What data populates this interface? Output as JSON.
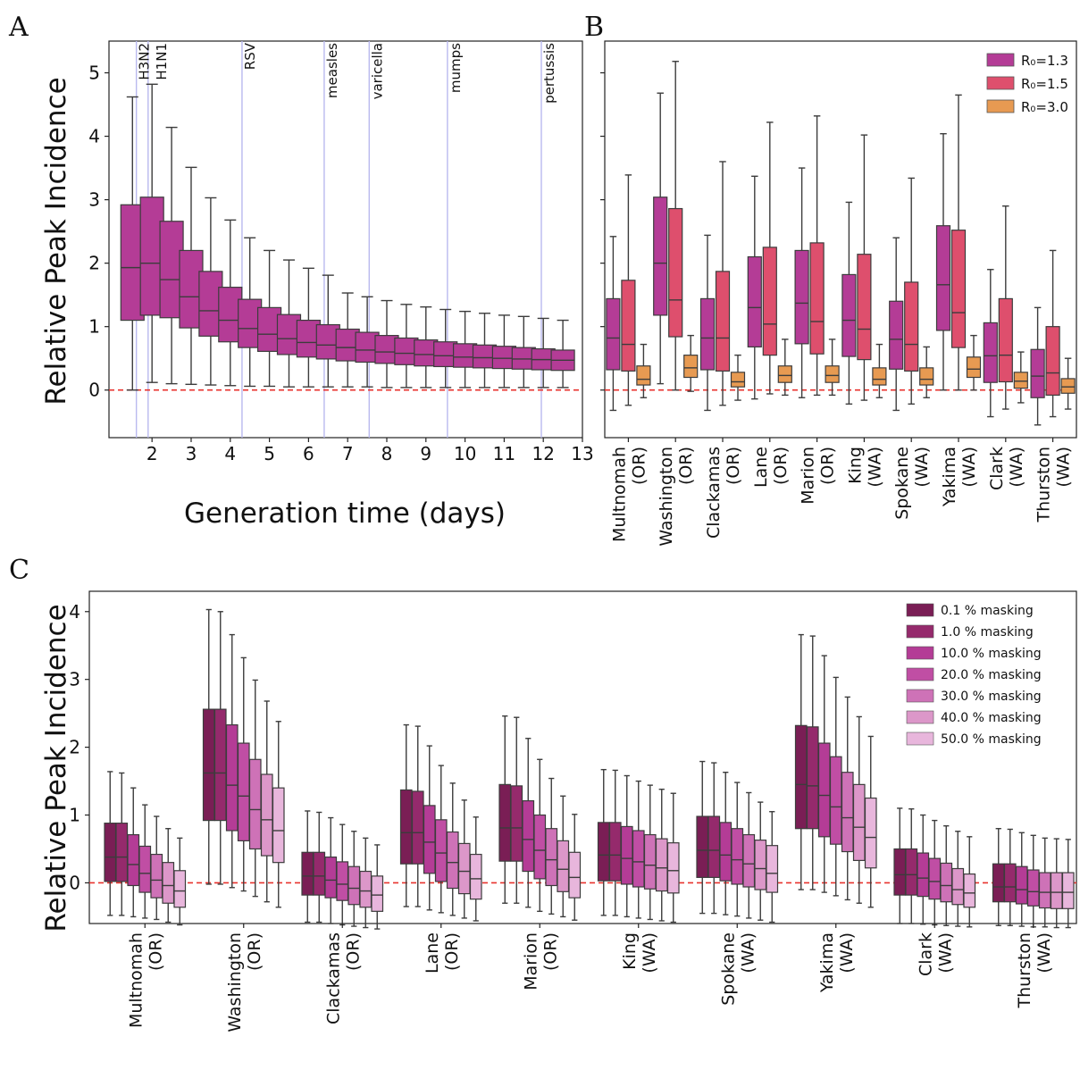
{
  "panel_letters": {
    "a": "A",
    "b": "B",
    "c": "C"
  },
  "chart_data": [
    {
      "panel": "A",
      "type": "box",
      "xlabel": "Generation time (days)",
      "ylabel": "Relative Peak Incidence",
      "xlim": [
        0.9,
        13
      ],
      "ylim": [
        -0.75,
        5.5
      ],
      "xticks": [
        2,
        3,
        4,
        5,
        6,
        7,
        8,
        9,
        10,
        11,
        12,
        13
      ],
      "yticks": [
        0,
        1,
        2,
        3,
        4,
        5
      ],
      "reference_line": {
        "y": 0,
        "style": "dashed",
        "color": "#e8322e"
      },
      "box_color": "#b43c96",
      "pathogens": [
        {
          "label": "H3N2",
          "x": 1.6
        },
        {
          "label": "H1N1",
          "x": 1.9
        },
        {
          "label": "RSV",
          "x": 4.3
        },
        {
          "label": "measles",
          "x": 6.4
        },
        {
          "label": "varicella",
          "x": 7.55
        },
        {
          "label": "mumps",
          "x": 9.55
        },
        {
          "label": "pertussis",
          "x": 11.95
        }
      ],
      "boxes": [
        {
          "x": 1.5,
          "min": 0,
          "q1": 1.1,
          "median": 1.93,
          "q3": 2.92,
          "max": 4.62
        },
        {
          "x": 2.0,
          "min": 0.12,
          "q1": 1.18,
          "median": 2.0,
          "q3": 3.04,
          "max": 4.82
        },
        {
          "x": 2.5,
          "min": 0.1,
          "q1": 1.14,
          "median": 1.74,
          "q3": 2.66,
          "max": 4.14
        },
        {
          "x": 3.0,
          "min": 0.09,
          "q1": 0.98,
          "median": 1.47,
          "q3": 2.2,
          "max": 3.51
        },
        {
          "x": 3.5,
          "min": 0.08,
          "q1": 0.85,
          "median": 1.25,
          "q3": 1.87,
          "max": 3.03
        },
        {
          "x": 4.0,
          "min": 0.07,
          "q1": 0.76,
          "median": 1.1,
          "q3": 1.62,
          "max": 2.68
        },
        {
          "x": 4.5,
          "min": 0.06,
          "q1": 0.67,
          "median": 0.97,
          "q3": 1.43,
          "max": 2.4
        },
        {
          "x": 5.0,
          "min": 0.06,
          "q1": 0.61,
          "median": 0.88,
          "q3": 1.3,
          "max": 2.2
        },
        {
          "x": 5.5,
          "min": 0.05,
          "q1": 0.56,
          "median": 0.81,
          "q3": 1.19,
          "max": 2.05
        },
        {
          "x": 6.0,
          "min": 0.05,
          "q1": 0.52,
          "median": 0.75,
          "q3": 1.1,
          "max": 1.92
        },
        {
          "x": 6.5,
          "min": 0.05,
          "q1": 0.49,
          "median": 0.71,
          "q3": 1.03,
          "max": 1.81
        },
        {
          "x": 7.0,
          "min": 0.05,
          "q1": 0.46,
          "median": 0.67,
          "q3": 0.96,
          "max": 1.53
        },
        {
          "x": 7.5,
          "min": 0.05,
          "q1": 0.44,
          "median": 0.63,
          "q3": 0.91,
          "max": 1.47
        },
        {
          "x": 8.0,
          "min": 0.04,
          "q1": 0.42,
          "median": 0.6,
          "q3": 0.86,
          "max": 1.41
        },
        {
          "x": 8.5,
          "min": 0.04,
          "q1": 0.4,
          "median": 0.58,
          "q3": 0.82,
          "max": 1.35
        },
        {
          "x": 9.0,
          "min": 0.04,
          "q1": 0.38,
          "median": 0.56,
          "q3": 0.79,
          "max": 1.31
        },
        {
          "x": 9.5,
          "min": 0.04,
          "q1": 0.37,
          "median": 0.54,
          "q3": 0.76,
          "max": 1.27
        },
        {
          "x": 10.0,
          "min": 0.04,
          "q1": 0.36,
          "median": 0.52,
          "q3": 0.73,
          "max": 1.24
        },
        {
          "x": 10.5,
          "min": 0.04,
          "q1": 0.35,
          "median": 0.51,
          "q3": 0.71,
          "max": 1.21
        },
        {
          "x": 11.0,
          "min": 0.04,
          "q1": 0.34,
          "median": 0.5,
          "q3": 0.69,
          "max": 1.18
        },
        {
          "x": 11.5,
          "min": 0.04,
          "q1": 0.33,
          "median": 0.49,
          "q3": 0.67,
          "max": 1.16
        },
        {
          "x": 12.0,
          "min": 0.04,
          "q1": 0.32,
          "median": 0.48,
          "q3": 0.65,
          "max": 1.13
        },
        {
          "x": 12.5,
          "min": 0.04,
          "q1": 0.31,
          "median": 0.47,
          "q3": 0.63,
          "max": 1.1
        }
      ]
    },
    {
      "panel": "B",
      "type": "box",
      "ylim": [
        -0.75,
        5.5
      ],
      "reference_line": {
        "y": 0,
        "style": "dashed",
        "color": "#e8322e"
      },
      "legend_position": "top-right",
      "categories": [
        "Multnomah\n(OR)",
        "Washington\n(OR)",
        "Clackamas\n(OR)",
        "Lane\n(OR)",
        "Marion\n(OR)",
        "King\n(WA)",
        "Spokane\n(WA)",
        "Yakima\n(WA)",
        "Clark\n(WA)",
        "Thurston\n(WA)"
      ],
      "series": [
        {
          "name": "R₀=1.3",
          "color": "#b43c96",
          "boxes": [
            {
              "min": -0.32,
              "q1": 0.32,
              "median": 0.82,
              "q3": 1.44,
              "max": 2.42
            },
            {
              "min": 0.1,
              "q1": 1.18,
              "median": 2.0,
              "q3": 3.04,
              "max": 4.68
            },
            {
              "min": -0.32,
              "q1": 0.32,
              "median": 0.82,
              "q3": 1.44,
              "max": 2.44
            },
            {
              "min": -0.14,
              "q1": 0.68,
              "median": 1.3,
              "q3": 2.1,
              "max": 3.37
            },
            {
              "min": -0.12,
              "q1": 0.73,
              "median": 1.37,
              "q3": 2.2,
              "max": 3.5
            },
            {
              "min": -0.22,
              "q1": 0.53,
              "median": 1.1,
              "q3": 1.82,
              "max": 2.96
            },
            {
              "min": -0.32,
              "q1": 0.33,
              "median": 0.8,
              "q3": 1.4,
              "max": 2.4
            },
            {
              "min": 0.0,
              "q1": 0.94,
              "median": 1.66,
              "q3": 2.59,
              "max": 4.04
            },
            {
              "min": -0.42,
              "q1": 0.12,
              "median": 0.54,
              "q3": 1.06,
              "max": 1.9
            },
            {
              "min": -0.55,
              "q1": -0.12,
              "median": 0.22,
              "q3": 0.64,
              "max": 1.3
            }
          ]
        },
        {
          "name": "R₀=1.5",
          "color": "#de4f6d",
          "boxes": [
            {
              "min": -0.24,
              "q1": 0.3,
              "median": 0.72,
              "q3": 1.73,
              "max": 3.39
            },
            {
              "min": 0.0,
              "q1": 0.84,
              "median": 1.42,
              "q3": 2.86,
              "max": 5.18
            },
            {
              "min": -0.24,
              "q1": 0.3,
              "median": 0.82,
              "q3": 1.87,
              "max": 3.6
            },
            {
              "min": -0.06,
              "q1": 0.55,
              "median": 1.04,
              "q3": 2.25,
              "max": 4.22
            },
            {
              "min": -0.08,
              "q1": 0.57,
              "median": 1.08,
              "q3": 2.32,
              "max": 4.32
            },
            {
              "min": -0.16,
              "q1": 0.48,
              "median": 0.96,
              "q3": 2.14,
              "max": 4.02
            },
            {
              "min": -0.22,
              "q1": 0.3,
              "median": 0.72,
              "q3": 1.7,
              "max": 3.34
            },
            {
              "min": 0.0,
              "q1": 0.67,
              "median": 1.22,
              "q3": 2.52,
              "max": 4.65
            },
            {
              "min": -0.3,
              "q1": 0.13,
              "median": 0.55,
              "q3": 1.44,
              "max": 2.9
            },
            {
              "min": -0.42,
              "q1": -0.08,
              "median": 0.27,
              "q3": 1.0,
              "max": 2.2
            }
          ]
        },
        {
          "name": "R₀=3.0",
          "color": "#e79a52",
          "boxes": [
            {
              "min": -0.12,
              "q1": 0.08,
              "median": 0.17,
              "q3": 0.38,
              "max": 0.72
            },
            {
              "min": -0.02,
              "q1": 0.2,
              "median": 0.35,
              "q3": 0.55,
              "max": 0.86
            },
            {
              "min": -0.16,
              "q1": 0.05,
              "median": 0.13,
              "q3": 0.28,
              "max": 0.55
            },
            {
              "min": -0.08,
              "q1": 0.12,
              "median": 0.23,
              "q3": 0.38,
              "max": 0.8
            },
            {
              "min": -0.08,
              "q1": 0.12,
              "median": 0.23,
              "q3": 0.38,
              "max": 0.8
            },
            {
              "min": -0.12,
              "q1": 0.08,
              "median": 0.17,
              "q3": 0.35,
              "max": 0.72
            },
            {
              "min": -0.12,
              "q1": 0.08,
              "median": 0.17,
              "q3": 0.35,
              "max": 0.68
            },
            {
              "min": 0.0,
              "q1": 0.2,
              "median": 0.33,
              "q3": 0.52,
              "max": 0.86
            },
            {
              "min": -0.2,
              "q1": 0.03,
              "median": 0.14,
              "q3": 0.28,
              "max": 0.6
            },
            {
              "min": -0.3,
              "q1": -0.05,
              "median": 0.05,
              "q3": 0.18,
              "max": 0.5
            }
          ]
        }
      ]
    },
    {
      "panel": "C",
      "type": "box",
      "ylabel": "Relative Peak Incidence",
      "ylim": [
        -0.6,
        4.3
      ],
      "yticks": [
        0,
        1,
        2,
        3,
        4
      ],
      "reference_line": {
        "y": 0,
        "style": "dashed",
        "color": "#e8322e"
      },
      "legend_position": "top-right",
      "categories": [
        "Multnomah\n(OR)",
        "Washington\n(OR)",
        "Clackamas\n(OR)",
        "Lane\n(OR)",
        "Marion\n(OR)",
        "King\n(WA)",
        "Spokane\n(WA)",
        "Yakima\n(WA)",
        "Clark\n(WA)",
        "Thurston\n(WA)"
      ],
      "series_names": [
        "0.1 % masking",
        "1.0 % masking",
        "10.0 % masking",
        "20.0 % masking",
        "30.0 % masking",
        "40.0 % masking",
        "50.0 % masking"
      ],
      "series_colors": [
        "#7a1e55",
        "#952a6c",
        "#b43c96",
        "#c04ea4",
        "#ce72b7",
        "#dc97c9",
        "#e8b6dc"
      ],
      "groups": [
        {
          "min": [
            -0.48,
            -0.48,
            -0.5,
            -0.52,
            -0.54,
            -0.58,
            -0.62
          ],
          "q1": [
            0.02,
            0.02,
            -0.04,
            -0.14,
            -0.22,
            -0.3,
            -0.36
          ],
          "median": [
            0.38,
            0.38,
            0.27,
            0.14,
            0.04,
            -0.04,
            -0.12
          ],
          "q3": [
            0.88,
            0.88,
            0.71,
            0.54,
            0.42,
            0.3,
            0.18
          ],
          "max": [
            1.64,
            1.62,
            1.4,
            1.15,
            0.98,
            0.8,
            0.66
          ]
        },
        {
          "min": [
            -0.02,
            -0.02,
            -0.07,
            -0.12,
            -0.2,
            -0.28,
            -0.36
          ],
          "q1": [
            0.92,
            0.92,
            0.77,
            0.62,
            0.5,
            0.4,
            0.3
          ],
          "median": [
            1.62,
            1.62,
            1.44,
            1.28,
            1.08,
            0.93,
            0.77
          ],
          "q3": [
            2.56,
            2.56,
            2.33,
            2.06,
            1.82,
            1.6,
            1.4
          ],
          "max": [
            4.03,
            4.0,
            3.66,
            3.32,
            2.99,
            2.68,
            2.38
          ]
        },
        {
          "min": [
            -0.58,
            -0.58,
            -0.6,
            -0.62,
            -0.64,
            -0.66,
            -0.68
          ],
          "q1": [
            -0.18,
            -0.18,
            -0.22,
            -0.26,
            -0.32,
            -0.36,
            -0.42
          ],
          "median": [
            0.1,
            0.1,
            0.04,
            -0.02,
            -0.08,
            -0.12,
            -0.18
          ],
          "q3": [
            0.45,
            0.45,
            0.38,
            0.31,
            0.24,
            0.17,
            0.1
          ],
          "max": [
            1.06,
            1.04,
            0.96,
            0.86,
            0.76,
            0.66,
            0.56
          ]
        },
        {
          "min": [
            -0.35,
            -0.35,
            -0.4,
            -0.44,
            -0.48,
            -0.52,
            -0.56
          ],
          "q1": [
            0.28,
            0.28,
            0.14,
            0.02,
            -0.08,
            -0.16,
            -0.24
          ],
          "median": [
            0.74,
            0.74,
            0.6,
            0.44,
            0.3,
            0.17,
            0.06
          ],
          "q3": [
            1.37,
            1.35,
            1.14,
            0.93,
            0.75,
            0.58,
            0.42
          ],
          "max": [
            2.33,
            2.31,
            2.02,
            1.73,
            1.47,
            1.22,
            0.97
          ]
        },
        {
          "min": [
            -0.3,
            -0.3,
            -0.36,
            -0.42,
            -0.46,
            -0.5,
            -0.55
          ],
          "q1": [
            0.32,
            0.32,
            0.17,
            0.06,
            -0.04,
            -0.13,
            -0.22
          ],
          "median": [
            0.81,
            0.81,
            0.64,
            0.48,
            0.34,
            0.2,
            0.08
          ],
          "q3": [
            1.45,
            1.43,
            1.21,
            1.0,
            0.8,
            0.62,
            0.45
          ],
          "max": [
            2.46,
            2.44,
            2.13,
            1.82,
            1.54,
            1.28,
            1.01
          ]
        },
        {
          "min": [
            -0.48,
            -0.48,
            -0.5,
            -0.52,
            -0.54,
            -0.56,
            -0.58
          ],
          "q1": [
            0.03,
            0.03,
            -0.02,
            -0.06,
            -0.09,
            -0.12,
            -0.15
          ],
          "median": [
            0.41,
            0.41,
            0.36,
            0.31,
            0.26,
            0.22,
            0.18
          ],
          "q3": [
            0.89,
            0.89,
            0.83,
            0.77,
            0.71,
            0.65,
            0.59
          ],
          "max": [
            1.67,
            1.66,
            1.58,
            1.5,
            1.44,
            1.38,
            1.32
          ]
        },
        {
          "min": [
            -0.45,
            -0.45,
            -0.47,
            -0.49,
            -0.52,
            -0.55,
            -0.58
          ],
          "q1": [
            0.08,
            0.08,
            0.03,
            -0.02,
            -0.06,
            -0.1,
            -0.14
          ],
          "median": [
            0.48,
            0.48,
            0.41,
            0.34,
            0.28,
            0.21,
            0.14
          ],
          "q3": [
            0.98,
            0.98,
            0.89,
            0.8,
            0.71,
            0.63,
            0.55
          ],
          "max": [
            1.79,
            1.77,
            1.63,
            1.48,
            1.33,
            1.19,
            1.05
          ]
        },
        {
          "min": [
            -0.1,
            -0.1,
            -0.14,
            -0.19,
            -0.25,
            -0.3,
            -0.36
          ],
          "q1": [
            0.8,
            0.8,
            0.68,
            0.57,
            0.46,
            0.33,
            0.22
          ],
          "median": [
            1.45,
            1.43,
            1.29,
            1.12,
            0.96,
            0.82,
            0.67
          ],
          "q3": [
            2.32,
            2.3,
            2.06,
            1.86,
            1.63,
            1.45,
            1.25
          ],
          "max": [
            3.66,
            3.64,
            3.35,
            3.03,
            2.74,
            2.45,
            2.16
          ]
        },
        {
          "min": [
            -0.6,
            -0.6,
            -0.61,
            -0.62,
            -0.63,
            -0.64,
            -0.65
          ],
          "q1": [
            -0.18,
            -0.18,
            -0.2,
            -0.24,
            -0.28,
            -0.32,
            -0.36
          ],
          "median": [
            0.12,
            0.12,
            0.07,
            0.02,
            -0.04,
            -0.1,
            -0.15
          ],
          "q3": [
            0.5,
            0.5,
            0.44,
            0.36,
            0.29,
            0.21,
            0.13
          ],
          "max": [
            1.1,
            1.09,
            1.0,
            0.92,
            0.84,
            0.76,
            0.68
          ]
        },
        {
          "min": [
            -0.63,
            -0.63,
            -0.64,
            -0.65,
            -0.65,
            -0.66,
            -0.66
          ],
          "q1": [
            -0.28,
            -0.28,
            -0.31,
            -0.34,
            -0.37,
            -0.38,
            -0.38
          ],
          "median": [
            -0.06,
            -0.06,
            -0.1,
            -0.13,
            -0.14,
            -0.14,
            -0.14
          ],
          "q3": [
            0.28,
            0.28,
            0.24,
            0.19,
            0.15,
            0.15,
            0.15
          ],
          "max": [
            0.8,
            0.79,
            0.74,
            0.7,
            0.66,
            0.65,
            0.64
          ]
        }
      ]
    }
  ]
}
